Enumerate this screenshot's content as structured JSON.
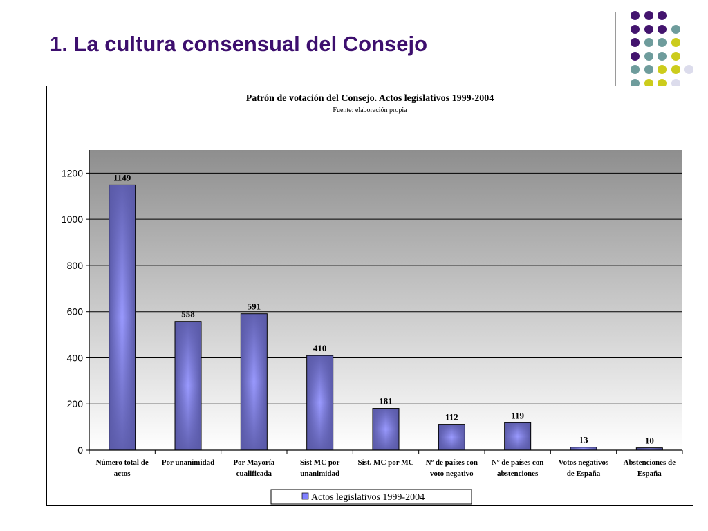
{
  "slide": {
    "title": "1. La cultura consensual del Consejo"
  },
  "decoration": {
    "dot_colors": {
      "purple": "#43146e",
      "teal": "#6e9c9c",
      "yellow": "#cccc1c",
      "lavender": "#dcdcec"
    }
  },
  "chart_data": {
    "type": "bar",
    "title": "Patrón de votación del Consejo. Actos legislativos 1999-2004",
    "subtitle": "Fuente: elaboración propia",
    "categories": [
      [
        "Número total de",
        "actos"
      ],
      [
        "Por unanimidad"
      ],
      [
        "Por Mayoría",
        "cualificada"
      ],
      [
        "Sist MC por",
        "unanimidad"
      ],
      [
        "Sist. MC por MC"
      ],
      [
        "Nº de países con",
        "voto negativo"
      ],
      [
        "Nº de países con",
        "abstenciones"
      ],
      [
        "Votos negativos",
        "de España"
      ],
      [
        "Abstenciones de",
        "España"
      ]
    ],
    "series": [
      {
        "name": "Actos legislativos 1999-2004",
        "values": [
          1149,
          558,
          591,
          410,
          181,
          112,
          119,
          13,
          10
        ],
        "color": "#8080ff"
      }
    ],
    "ylim": [
      0,
      1300
    ],
    "yticks": [
      0,
      200,
      400,
      600,
      800,
      1000,
      1200
    ],
    "grid": true,
    "legend_position": "bottom-center",
    "data_labels": true
  }
}
